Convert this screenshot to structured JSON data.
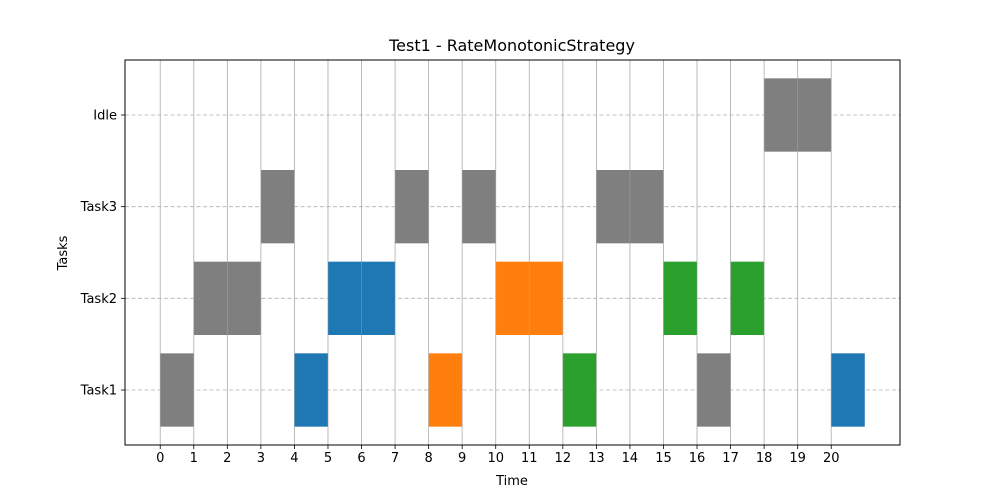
{
  "chart_data": {
    "type": "gantt",
    "title": "Test1 - RateMonotonicStrategy",
    "xlabel": "Time",
    "ylabel": "Tasks",
    "xlim": [
      -1.05,
      22.05
    ],
    "ylim": [
      -0.6,
      3.6
    ],
    "x_ticks": [
      0,
      1,
      2,
      3,
      4,
      5,
      6,
      7,
      8,
      9,
      10,
      11,
      12,
      13,
      14,
      15,
      16,
      17,
      18,
      19,
      20
    ],
    "y_categories": [
      "Task1",
      "Task2",
      "Task3",
      "Idle"
    ],
    "grid": {
      "vertical": "solid-gray",
      "horizontal": "dashed-gray"
    },
    "colors": {
      "gray": "#7f7f7f",
      "blue": "#1f77b4",
      "orange": "#ff7f0e",
      "green": "#2ca02c",
      "grid": "#b0b0b0"
    },
    "bars": [
      {
        "task": "Task1",
        "start": 0,
        "end": 1,
        "color": "#7f7f7f"
      },
      {
        "task": "Task2",
        "start": 1,
        "end": 2,
        "color": "#7f7f7f"
      },
      {
        "task": "Task2",
        "start": 2,
        "end": 3,
        "color": "#7f7f7f"
      },
      {
        "task": "Task3",
        "start": 3,
        "end": 4,
        "color": "#7f7f7f"
      },
      {
        "task": "Task1",
        "start": 4,
        "end": 5,
        "color": "#1f77b4"
      },
      {
        "task": "Task2",
        "start": 5,
        "end": 6,
        "color": "#1f77b4"
      },
      {
        "task": "Task2",
        "start": 6,
        "end": 7,
        "color": "#1f77b4"
      },
      {
        "task": "Task3",
        "start": 7,
        "end": 8,
        "color": "#7f7f7f"
      },
      {
        "task": "Task1",
        "start": 8,
        "end": 9,
        "color": "#ff7f0e"
      },
      {
        "task": "Task3",
        "start": 9,
        "end": 10,
        "color": "#7f7f7f"
      },
      {
        "task": "Task2",
        "start": 10,
        "end": 11,
        "color": "#ff7f0e"
      },
      {
        "task": "Task2",
        "start": 11,
        "end": 12,
        "color": "#ff7f0e"
      },
      {
        "task": "Task1",
        "start": 12,
        "end": 13,
        "color": "#2ca02c"
      },
      {
        "task": "Task3",
        "start": 13,
        "end": 14,
        "color": "#7f7f7f"
      },
      {
        "task": "Task3",
        "start": 14,
        "end": 15,
        "color": "#7f7f7f"
      },
      {
        "task": "Task2",
        "start": 15,
        "end": 16,
        "color": "#2ca02c"
      },
      {
        "task": "Task1",
        "start": 16,
        "end": 17,
        "color": "#7f7f7f"
      },
      {
        "task": "Task2",
        "start": 17,
        "end": 18,
        "color": "#2ca02c"
      },
      {
        "task": "Idle",
        "start": 18,
        "end": 19,
        "color": "#7f7f7f"
      },
      {
        "task": "Idle",
        "start": 19,
        "end": 20,
        "color": "#7f7f7f"
      },
      {
        "task": "Task1",
        "start": 20,
        "end": 21,
        "color": "#1f77b4"
      }
    ]
  }
}
